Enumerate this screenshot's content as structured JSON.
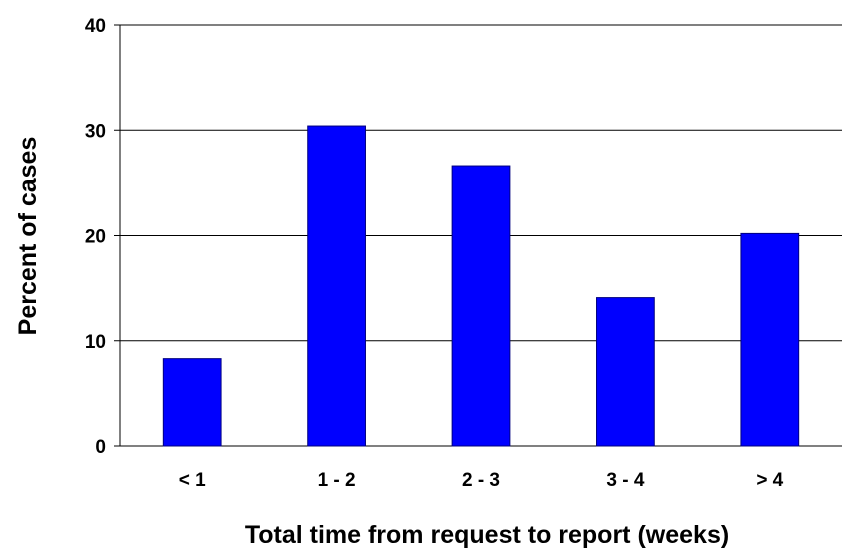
{
  "chart_data": {
    "type": "bar",
    "title": "",
    "xlabel": "Total time from request to report (weeks)",
    "ylabel": "Percent of cases",
    "categories": [
      "< 1",
      "1 - 2",
      "2 - 3",
      "3 - 4",
      "> 4"
    ],
    "values": [
      8.3,
      30.4,
      26.6,
      14.1,
      20.2
    ],
    "ylim": [
      0,
      40
    ],
    "yticks": [
      "0",
      "10",
      "20",
      "30",
      "40"
    ],
    "ytick_values": [
      0,
      10,
      20,
      30,
      40
    ],
    "grid": true,
    "legend": "none",
    "bar_color": "#0000ff",
    "bar_edge_color": "#000080"
  }
}
